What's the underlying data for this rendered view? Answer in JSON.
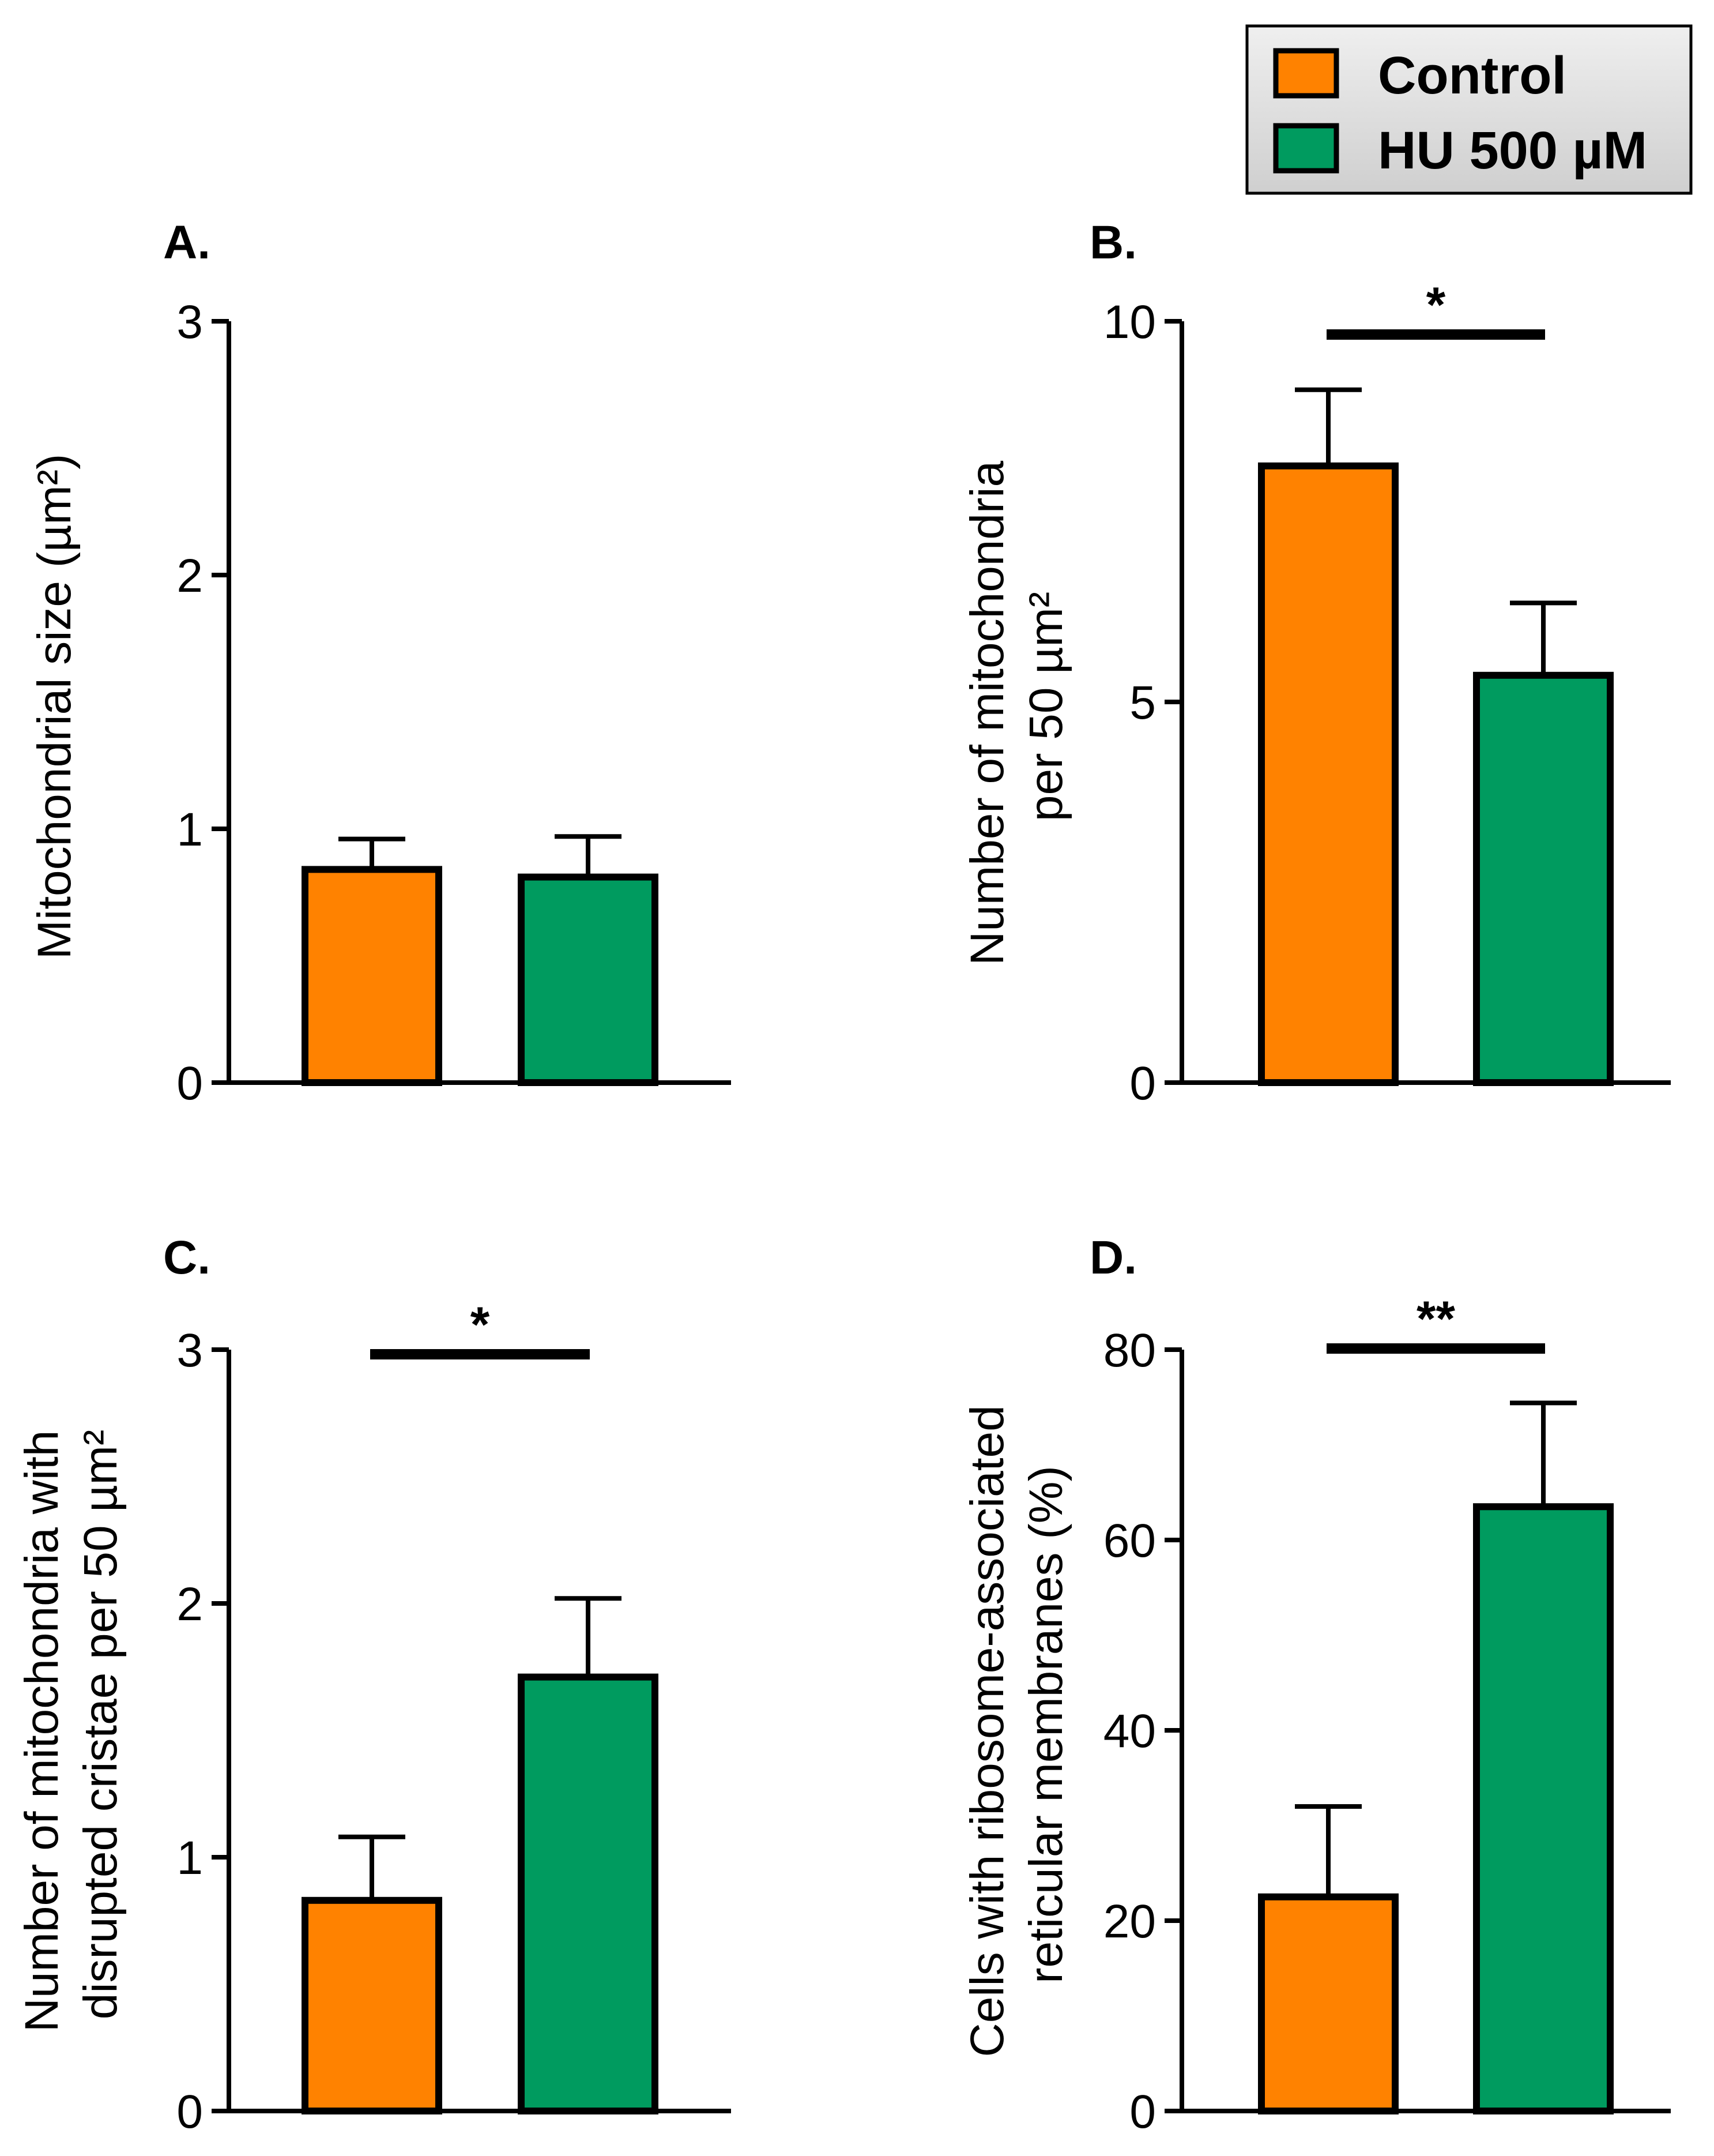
{
  "legend": {
    "items": [
      {
        "label": "Control",
        "color_key": "control"
      },
      {
        "label": "HU 500 µM",
        "color_key": "hu"
      }
    ]
  },
  "colors": {
    "control": "#ff8200",
    "hu": "#009b5f",
    "legend_bg_top": "#efefef",
    "legend_bg_bottom": "#cfcfcf",
    "outline": "#000000"
  },
  "chart_data": [
    {
      "type": "bar",
      "panel_label": "A.",
      "categories": [
        "Control",
        "HU 500 µM"
      ],
      "series": [
        {
          "values": [
            0.84,
            0.81
          ],
          "errors": [
            0.12,
            0.16
          ]
        }
      ],
      "ylabel": "Mitochondrial size (µm²)",
      "ylim": [
        0,
        3
      ],
      "yticks": [
        "0",
        "1",
        "2",
        "3"
      ],
      "significance": null
    },
    {
      "type": "bar",
      "panel_label": "B.",
      "categories": [
        "Control",
        "HU 500 µM"
      ],
      "series": [
        {
          "values": [
            8.1,
            5.35
          ],
          "errors": [
            1.0,
            0.95
          ]
        }
      ],
      "ylabel_lines": [
        "Number of mitochondria",
        "per 50 µm²"
      ],
      "ylim": [
        0,
        10
      ],
      "yticks": [
        "0",
        "5",
        "10"
      ],
      "significance": "*"
    },
    {
      "type": "bar",
      "panel_label": "C.",
      "categories": [
        "Control",
        "HU 500 µM"
      ],
      "series": [
        {
          "values": [
            0.83,
            1.71
          ],
          "errors": [
            0.25,
            0.31
          ]
        }
      ],
      "ylabel_lines": [
        "Number of mitochondria with",
        "disrupted cristae per 50 µm²"
      ],
      "ylim": [
        0,
        3
      ],
      "yticks": [
        "0",
        "1",
        "2",
        "3"
      ],
      "significance": "*"
    },
    {
      "type": "bar",
      "panel_label": "D.",
      "categories": [
        "Control",
        "HU 500 µM"
      ],
      "series": [
        {
          "values": [
            22.5,
            63.5
          ],
          "errors": [
            9.5,
            10.9
          ]
        }
      ],
      "ylabel_lines": [
        "Cells with ribosome-associated",
        "reticular membranes (%)"
      ],
      "ylim": [
        0,
        80
      ],
      "yticks": [
        "0",
        "20",
        "40",
        "60",
        "80"
      ],
      "significance": "**"
    }
  ]
}
